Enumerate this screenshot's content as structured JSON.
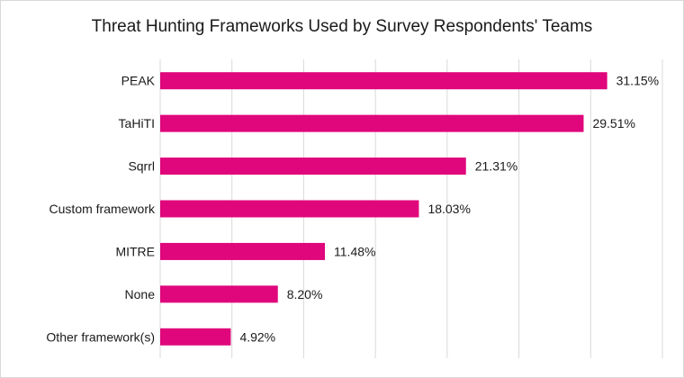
{
  "chart_data": {
    "type": "bar",
    "orientation": "horizontal",
    "title": "Threat Hunting Frameworks Used by Survey Respondents' Teams",
    "categories": [
      "PEAK",
      "TaHiTI",
      "Sqrrl",
      "Custom framework",
      "MITRE",
      "None",
      "Other framework(s)"
    ],
    "values": [
      31.15,
      29.51,
      21.31,
      18.03,
      11.48,
      8.2,
      4.92
    ],
    "value_labels": [
      "31.15%",
      "29.51%",
      "21.31%",
      "18.03%",
      "11.48%",
      "8.20%",
      "4.92%"
    ],
    "xlim": [
      0,
      35
    ],
    "grid": true,
    "legend": "none",
    "bar_color": "#e0067c"
  }
}
